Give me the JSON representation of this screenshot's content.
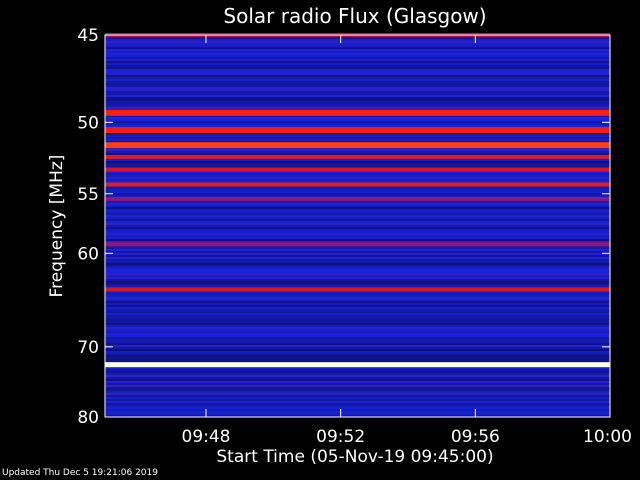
{
  "footer": "Updated Thu Dec  5 19:21:06 2019",
  "chart_data": {
    "type": "heatmap",
    "title": "Solar radio Flux (Glasgow)",
    "xlabel": "Start Time (05-Nov-19 09:45:00)",
    "ylabel": "Frequency [MHz]",
    "xlim": [
      "09:45",
      "10:00"
    ],
    "ylim": [
      45,
      80
    ],
    "y_scale": "reciprocal",
    "x_ticks": [
      "09:48",
      "09:52",
      "09:56",
      "10:00"
    ],
    "y_ticks": [
      45,
      50,
      55,
      60,
      70,
      80
    ],
    "colormap": "blue-red-white",
    "bands": [
      {
        "frequency": 45.0,
        "level": 0.6
      },
      {
        "frequency": 49.4,
        "level": 0.8
      },
      {
        "frequency": 50.5,
        "level": 0.78
      },
      {
        "frequency": 51.5,
        "level": 0.82
      },
      {
        "frequency": 52.3,
        "level": 0.72
      },
      {
        "frequency": 53.2,
        "level": 0.68
      },
      {
        "frequency": 54.3,
        "level": 0.75
      },
      {
        "frequency": 55.4,
        "level": 0.55
      },
      {
        "frequency": 59.2,
        "level": 0.55
      },
      {
        "frequency": 63.5,
        "level": 0.7
      },
      {
        "frequency": 72.3,
        "level": 1.0
      }
    ]
  }
}
